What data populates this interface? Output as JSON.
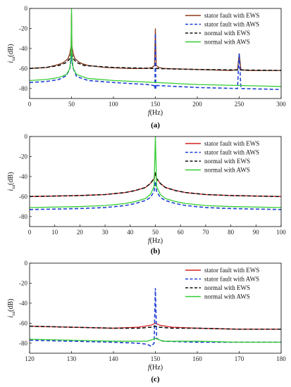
{
  "chart_data": [
    {
      "type": "line",
      "panel_label": "(a)",
      "xlabel_var": "f",
      "xlabel_unit": "(Hz)",
      "ylabel_var": "i",
      "ylabel_sub": "sa",
      "ylabel_unit": "(dB)",
      "xlim": [
        0,
        300
      ],
      "ylim": [
        -90,
        0
      ],
      "xticks": [
        0,
        50,
        100,
        150,
        200,
        250,
        300
      ],
      "yticks": [
        0,
        -20,
        -40,
        -60,
        -80
      ],
      "legend_position": "top-right",
      "series": [
        {
          "name": "stator fault with EWS",
          "color": "#8B3A1A",
          "style": "solid",
          "x": [
            0,
            20,
            30,
            38,
            42,
            46,
            48,
            49.5,
            50,
            50.5,
            52,
            54,
            58,
            62,
            70,
            90,
            120,
            140,
            146,
            149,
            150,
            151,
            154,
            160,
            200,
            240,
            248,
            250,
            252,
            260,
            300
          ],
          "y": [
            -60,
            -59,
            -57,
            -55,
            -53,
            -50,
            -45,
            -38,
            -5,
            -38,
            -45,
            -50,
            -53,
            -55,
            -57,
            -59,
            -60,
            -60,
            -59,
            -57,
            -20,
            -57,
            -59,
            -60,
            -61,
            -62,
            -61,
            -45,
            -61,
            -62,
            -62
          ]
        },
        {
          "name": "stator fault with AWS",
          "color": "#1f3fd6",
          "style": "dashed",
          "x": [
            0,
            20,
            35,
            44,
            48,
            49.5,
            50,
            50.5,
            52,
            56,
            70,
            100,
            140,
            148,
            149.5,
            150,
            150.5,
            152,
            200,
            248,
            250,
            252,
            300
          ],
          "y": [
            -74,
            -73,
            -71,
            -67,
            -60,
            -52,
            -35,
            -52,
            -60,
            -68,
            -72,
            -74,
            -76,
            -77,
            -80,
            -25,
            -80,
            -77,
            -79,
            -80,
            -45,
            -80,
            -81
          ]
        },
        {
          "name": "normal with EWS",
          "color": "#111111",
          "style": "dashed",
          "x": [
            0,
            20,
            35,
            44,
            48,
            49.5,
            50,
            50.5,
            52,
            56,
            65,
            100,
            200,
            300
          ],
          "y": [
            -60,
            -59,
            -57,
            -54,
            -50,
            -45,
            -38,
            -45,
            -50,
            -54,
            -57,
            -59,
            -61,
            -62
          ]
        },
        {
          "name": "normal with AWS",
          "color": "#33cc33",
          "style": "solid",
          "x": [
            0,
            20,
            35,
            44,
            48,
            49.5,
            50,
            50.5,
            52,
            56,
            70,
            100,
            200,
            300
          ],
          "y": [
            -72,
            -71,
            -69,
            -66,
            -60,
            -45,
            0,
            -45,
            -60,
            -66,
            -70,
            -72,
            -76,
            -78
          ]
        }
      ]
    },
    {
      "type": "line",
      "panel_label": "(b)",
      "xlabel_var": "f",
      "xlabel_unit": "(Hz)",
      "ylabel_var": "i",
      "ylabel_sub": "sa",
      "ylabel_unit": "(dB)",
      "xlim": [
        0,
        100
      ],
      "ylim": [
        -90,
        0
      ],
      "xticks": [
        0,
        10,
        20,
        30,
        40,
        50,
        60,
        70,
        80,
        90,
        100
      ],
      "yticks": [
        0,
        -20,
        -40,
        -60,
        -80
      ],
      "legend_position": "top-right",
      "series": [
        {
          "name": "stator fault with EWS",
          "color": "#d42020",
          "style": "solid",
          "x": [
            0,
            20,
            30,
            38,
            42,
            46,
            48,
            49.5,
            50,
            50.5,
            52,
            54,
            58,
            62,
            70,
            80,
            100
          ],
          "y": [
            -60,
            -59,
            -58,
            -56,
            -54,
            -51,
            -47,
            -42,
            -36,
            -42,
            -47,
            -51,
            -54,
            -56,
            -58,
            -59,
            -60
          ]
        },
        {
          "name": "stator fault with AWS",
          "color": "#1f3fd6",
          "style": "dashed",
          "x": [
            0,
            20,
            30,
            38,
            42,
            46,
            48,
            49.5,
            50,
            50.5,
            52,
            54,
            58,
            62,
            70,
            80,
            100
          ],
          "y": [
            -73,
            -72,
            -71,
            -69,
            -67,
            -64,
            -61,
            -55,
            -45,
            -55,
            -61,
            -64,
            -67,
            -69,
            -71,
            -72,
            -73
          ]
        },
        {
          "name": "normal with EWS",
          "color": "#111111",
          "style": "dashed",
          "x": [
            0,
            20,
            30,
            38,
            42,
            46,
            48,
            49.5,
            50,
            50.5,
            52,
            54,
            58,
            62,
            70,
            80,
            100
          ],
          "y": [
            -60,
            -59,
            -58,
            -56,
            -54,
            -51,
            -47,
            -42,
            -36,
            -42,
            -47,
            -51,
            -54,
            -56,
            -58,
            -59,
            -60
          ]
        },
        {
          "name": "normal with AWS",
          "color": "#33cc33",
          "style": "solid",
          "x": [
            0,
            20,
            30,
            38,
            42,
            46,
            48,
            49.5,
            50,
            50.5,
            52,
            54,
            58,
            62,
            70,
            80,
            100
          ],
          "y": [
            -71,
            -70,
            -69,
            -67,
            -65,
            -62,
            -58,
            -50,
            0,
            -50,
            -58,
            -62,
            -65,
            -67,
            -69,
            -70,
            -71
          ]
        }
      ]
    },
    {
      "type": "line",
      "panel_label": "(c)",
      "xlabel_var": "f",
      "xlabel_unit": "(Hz)",
      "ylabel_var": "i",
      "ylabel_sub": "sa",
      "ylabel_unit": "(dB)",
      "xlim": [
        120,
        180
      ],
      "ylim": [
        -90,
        0
      ],
      "xticks": [
        120,
        130,
        140,
        150,
        160,
        170,
        180
      ],
      "yticks": [
        0,
        -20,
        -40,
        -60,
        -80
      ],
      "legend_position": "top-right",
      "series": [
        {
          "name": "stator fault with EWS",
          "color": "#d42020",
          "style": "solid",
          "x": [
            120,
            130,
            140,
            146,
            149,
            150,
            151,
            154,
            160,
            170,
            180
          ],
          "y": [
            -63,
            -64,
            -65,
            -64,
            -62,
            -60,
            -62,
            -64,
            -65,
            -66,
            -66
          ]
        },
        {
          "name": "stator fault with AWS",
          "color": "#1f3fd6",
          "style": "dashed",
          "x": [
            120,
            130,
            140,
            146,
            148,
            149,
            149.7,
            150,
            150.3,
            151,
            152,
            160,
            170,
            180
          ],
          "y": [
            -77,
            -78,
            -79,
            -80,
            -81,
            -83,
            -80,
            -25,
            -75,
            -77,
            -78,
            -79,
            -79,
            -79
          ]
        },
        {
          "name": "normal with EWS",
          "color": "#111111",
          "style": "dashed",
          "x": [
            120,
            130,
            140,
            146,
            149,
            150,
            151,
            154,
            160,
            170,
            180
          ],
          "y": [
            -63,
            -64,
            -65,
            -65,
            -64,
            -63,
            -64,
            -65,
            -65,
            -66,
            -66
          ]
        },
        {
          "name": "normal with AWS",
          "color": "#33cc33",
          "style": "solid",
          "x": [
            120,
            130,
            140,
            148,
            149.5,
            150,
            150.5,
            152,
            160,
            170,
            180
          ],
          "y": [
            -76,
            -77,
            -78,
            -78,
            -76,
            -75,
            -76,
            -78,
            -78,
            -79,
            -79
          ]
        }
      ]
    }
  ]
}
